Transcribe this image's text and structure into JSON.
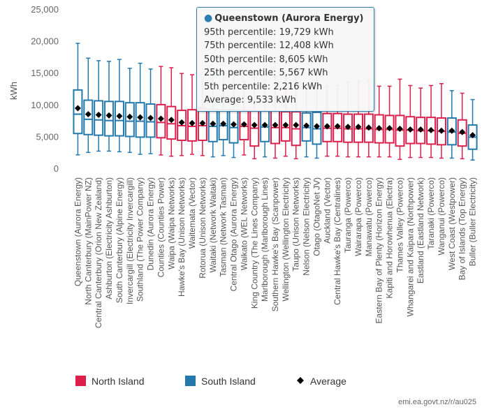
{
  "chart_data": {
    "type": "boxplot",
    "ylabel": "kWh",
    "ylim": [
      0,
      25000
    ],
    "yticks": [
      "0",
      "5,000",
      "10,000",
      "15,000",
      "20,000",
      "25,000"
    ],
    "grid": false,
    "legend_position": "bottom",
    "legend": {
      "north": "North Island",
      "south": "South Island",
      "average": "Average"
    },
    "colors": {
      "north": "#dd1f4b",
      "south": "#2479ac",
      "average": "#000000"
    },
    "categories": [
      {
        "label": "Queenstown (Aurora Energy)",
        "island": "south",
        "p5": 2216,
        "p25": 5567,
        "p50": 8605,
        "p75": 12408,
        "p95": 19729,
        "avg": 9533
      },
      {
        "label": "North Canterbury (MainPower NZ)",
        "island": "south",
        "p5": 2600,
        "p25": 5400,
        "p50": 7800,
        "p75": 10800,
        "p95": 17400,
        "avg": 8600
      },
      {
        "label": "Central Canterbury (Orion New Zealand)",
        "island": "south",
        "p5": 2800,
        "p25": 5300,
        "p50": 7700,
        "p75": 10700,
        "p95": 17000,
        "avg": 8500
      },
      {
        "label": "Ashburton (Electricity Ashburton)",
        "island": "south",
        "p5": 2800,
        "p25": 5200,
        "p50": 7600,
        "p75": 10600,
        "p95": 16900,
        "avg": 8400
      },
      {
        "label": "South Canterbury (Alpine Energy)",
        "island": "south",
        "p5": 2700,
        "p25": 5200,
        "p50": 7600,
        "p75": 10600,
        "p95": 17200,
        "avg": 8300
      },
      {
        "label": "Invercargill (Electricity Invercargill)",
        "island": "south",
        "p5": 2600,
        "p25": 5100,
        "p50": 7500,
        "p75": 10400,
        "p95": 15800,
        "avg": 8200
      },
      {
        "label": "Southland (The Power Company)",
        "island": "south",
        "p5": 2300,
        "p25": 5000,
        "p50": 7500,
        "p75": 10400,
        "p95": 16600,
        "avg": 8100
      },
      {
        "label": "Dunedin (Aurora Energy)",
        "island": "south",
        "p5": 2400,
        "p25": 5000,
        "p50": 7400,
        "p75": 10200,
        "p95": 15700,
        "avg": 8000
      },
      {
        "label": "Counties (Counties Power)",
        "island": "north",
        "p5": 2200,
        "p25": 4900,
        "p50": 7300,
        "p75": 10100,
        "p95": 16100,
        "avg": 7900
      },
      {
        "label": "Waipa (Waipa Networks)",
        "island": "north",
        "p5": 2000,
        "p25": 4700,
        "p50": 7100,
        "p75": 9800,
        "p95": 15900,
        "avg": 7700
      },
      {
        "label": "Hawke's Bay (Unison Networks)",
        "island": "north",
        "p5": 2100,
        "p25": 4500,
        "p50": 6800,
        "p75": 9200,
        "p95": 15000,
        "avg": 7300
      },
      {
        "label": "Waitemata (Vector)",
        "island": "north",
        "p5": 2300,
        "p25": 4400,
        "p50": 6700,
        "p75": 9300,
        "p95": 14800,
        "avg": 7200
      },
      {
        "label": "Rotorua (Unison Networks)",
        "island": "north",
        "p5": 2100,
        "p25": 4500,
        "p50": 6800,
        "p75": 9500,
        "p95": 14300,
        "avg": 7200
      },
      {
        "label": "Waitaki (Network Waitaki)",
        "island": "south",
        "p5": 1900,
        "p25": 4300,
        "p50": 6700,
        "p75": 9400,
        "p95": 15500,
        "avg": 7100
      },
      {
        "label": "Tasman (Network Tasman)",
        "island": "south",
        "p5": 2100,
        "p25": 4600,
        "p50": 6800,
        "p75": 9300,
        "p95": 15000,
        "avg": 7100
      },
      {
        "label": "Central Otago (Aurora Energy)",
        "island": "south",
        "p5": 1800,
        "p25": 4100,
        "p50": 6500,
        "p75": 9300,
        "p95": 15300,
        "avg": 7000
      },
      {
        "label": "Waikato (WEL Networks)",
        "island": "north",
        "p5": 2200,
        "p25": 4600,
        "p50": 6700,
        "p75": 9200,
        "p95": 13800,
        "avg": 7000
      },
      {
        "label": "King Country (The Lines Company)",
        "island": "north",
        "p5": 1600,
        "p25": 3600,
        "p50": 6400,
        "p75": 9100,
        "p95": 15500,
        "avg": 6900
      },
      {
        "label": "Marlborough (Marlborough Lines)",
        "island": "south",
        "p5": 1900,
        "p25": 4300,
        "p50": 6600,
        "p75": 9100,
        "p95": 14000,
        "avg": 6900
      },
      {
        "label": "Southern Hawke's Bay (Scanpower)",
        "island": "north",
        "p5": 1700,
        "p25": 4000,
        "p50": 6500,
        "p75": 9100,
        "p95": 14500,
        "avg": 6900
      },
      {
        "label": "Wellington (Wellington Electricity)",
        "island": "north",
        "p5": 2000,
        "p25": 4400,
        "p50": 6500,
        "p75": 9000,
        "p95": 14200,
        "avg": 6900
      },
      {
        "label": "Taupo (Unison Networks)",
        "island": "north",
        "p5": 1600,
        "p25": 3700,
        "p50": 6300,
        "p75": 9000,
        "p95": 15000,
        "avg": 6900
      },
      {
        "label": "Nelson (Nelson Electricity)",
        "island": "south",
        "p5": 1900,
        "p25": 4400,
        "p50": 6500,
        "p75": 8800,
        "p95": 13200,
        "avg": 6800
      },
      {
        "label": "Otago (OtagoNet JV)",
        "island": "south",
        "p5": 1700,
        "p25": 3900,
        "p50": 6300,
        "p75": 8900,
        "p95": 14600,
        "avg": 6700
      },
      {
        "label": "Auckland (Vector)",
        "island": "north",
        "p5": 2000,
        "p25": 4300,
        "p50": 6400,
        "p75": 8700,
        "p95": 13000,
        "avg": 6700
      },
      {
        "label": "Central Hawke's Bay (Centralines)",
        "island": "north",
        "p5": 2000,
        "p25": 4300,
        "p50": 6400,
        "p75": 8700,
        "p95": 13200,
        "avg": 6700
      },
      {
        "label": "Tauranga (Powerco)",
        "island": "north",
        "p5": 1900,
        "p25": 4200,
        "p50": 6300,
        "p75": 8600,
        "p95": 13600,
        "avg": 6600
      },
      {
        "label": "Wairarapa (Powerco)",
        "island": "north",
        "p5": 1900,
        "p25": 4200,
        "p50": 6300,
        "p75": 8600,
        "p95": 13900,
        "avg": 6600
      },
      {
        "label": "Manawatu (Powerco)",
        "island": "north",
        "p5": 1900,
        "p25": 4200,
        "p50": 6300,
        "p75": 8600,
        "p95": 13900,
        "avg": 6500
      },
      {
        "label": "Eastern Bay of Plenty (Horizon Energy)",
        "island": "north",
        "p5": 1900,
        "p25": 4100,
        "p50": 6200,
        "p75": 8500,
        "p95": 13000,
        "avg": 6400
      },
      {
        "label": "Kapiti and Horowhenua (Electra)",
        "island": "north",
        "p5": 1900,
        "p25": 4100,
        "p50": 6200,
        "p75": 8400,
        "p95": 13000,
        "avg": 6400
      },
      {
        "label": "Thames Valley (Powerco)",
        "island": "north",
        "p5": 1500,
        "p25": 3600,
        "p50": 6100,
        "p75": 8400,
        "p95": 14100,
        "avg": 6300
      },
      {
        "label": "Whangarei and Kaipara (Northpower)",
        "island": "north",
        "p5": 1800,
        "p25": 4000,
        "p50": 6100,
        "p75": 8200,
        "p95": 13100,
        "avg": 6200
      },
      {
        "label": "Eastland (Eastland Network)",
        "island": "north",
        "p5": 1800,
        "p25": 4000,
        "p50": 6000,
        "p75": 8100,
        "p95": 12700,
        "avg": 6200
      },
      {
        "label": "Taranaki (Powerco)",
        "island": "north",
        "p5": 1800,
        "p25": 3900,
        "p50": 6000,
        "p75": 8100,
        "p95": 13100,
        "avg": 6100
      },
      {
        "label": "Wanganui (Powerco)",
        "island": "north",
        "p5": 1700,
        "p25": 3800,
        "p50": 5900,
        "p75": 8000,
        "p95": 13400,
        "avg": 6000
      },
      {
        "label": "West Coast (Westpower)",
        "island": "south",
        "p5": 1700,
        "p25": 3800,
        "p50": 5800,
        "p75": 8000,
        "p95": 12300,
        "avg": 6000
      },
      {
        "label": "Bay of Islands (Top Energy)",
        "island": "north",
        "p5": 1600,
        "p25": 3600,
        "p50": 5600,
        "p75": 7700,
        "p95": 11900,
        "avg": 5800
      },
      {
        "label": "Buller (Buller Electricity)",
        "island": "south",
        "p5": 1400,
        "p25": 3100,
        "p50": 5000,
        "p75": 6900,
        "p95": 10900,
        "avg": 5300
      }
    ]
  },
  "tooltip": {
    "title": "Queenstown (Aurora Energy)",
    "lines": [
      "95th percentile: 19,729 kWh",
      "75th percentile: 12,408 kWh",
      "50th percentile: 8,605 kWh",
      "25th percentile: 5,567 kWh",
      "5th percentile: 2,216 kWh",
      "Average: 9,533 kWh"
    ]
  },
  "footer": "emi.ea.govt.nz/r/au025"
}
